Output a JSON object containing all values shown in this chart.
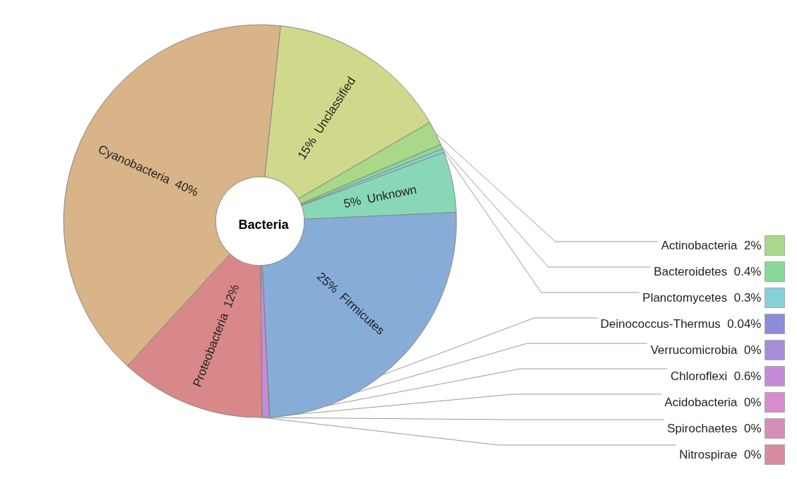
{
  "chart_data": {
    "type": "donut",
    "title": "Bacteria",
    "categories": [
      "Unclassified",
      "Actinobacteria",
      "Bacteroidetes",
      "Planctomycetes",
      "Unknown",
      "Firmicutes",
      "Deinococcus-Thermus",
      "Verrucomicrobia",
      "Chloroflexi",
      "Acidobacteria",
      "Spirochaetes",
      "Nitrospirae",
      "Proteobacteria",
      "Cyanobacteria"
    ],
    "values": [
      15,
      2,
      0.4,
      0.3,
      5,
      25,
      0.04,
      0,
      0.6,
      0,
      0,
      0,
      12,
      40
    ],
    "value_labels": [
      "15%",
      "2%",
      "0.4%",
      "0.3%",
      "5%",
      "25%",
      "0.04%",
      "0%",
      "0.6%",
      "0%",
      "0%",
      "0%",
      "12%",
      "40%"
    ],
    "colors": [
      "#d0d88c",
      "#a8d888",
      "#88d898",
      "#88d0d8",
      "#88d8b8",
      "#88acd8",
      "#8c8cd8",
      "#a88cd8",
      "#c48cd8",
      "#d88cd0",
      "#d88cb8",
      "#d88ca0",
      "#d88888",
      "#d8b488"
    ],
    "legend": "right"
  }
}
